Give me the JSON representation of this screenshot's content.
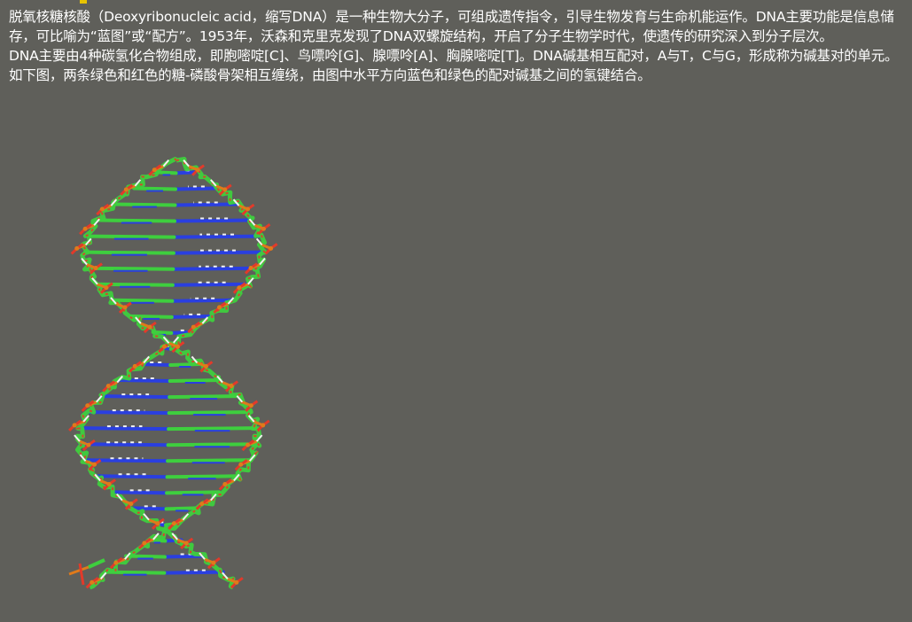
{
  "paragraphs": [
    "脱氧核糖核酸（Deoxyribonucleic acid，缩写DNA）是一种生物大分子，可组成遗传指令，引导生物发育与生命机能运作。DNA主要功能是信息储存，可比喻为“蓝图”或“配方”。1953年，沃森和克里克发现了DNA双螺旋结构，开启了分子生物学时代，使遗传的研究深入到分子层次。",
    "DNA主要由4种碳氢化合物组成，即胞嘧啶[C]、鸟嘌呤[G]、腺嘌呤[A]、胸腺嘧啶[T]。DNA碱基相互配对，A与T，C与G，形成称为碱基对的单元。如下图，两条绿色和红色的糖-磷酸骨架相互缠绕，由图中水平方向蓝色和绿色的配对碱基之间的氢键结合。"
  ],
  "figure": {
    "icon": "dna-double-helix-molecular-model",
    "colors": {
      "background": "#5f5f5a",
      "backbone": "#3ecf3e",
      "oxygen": "#e23a2a",
      "phosphorus": "#e07a1a",
      "nitrogen": "#2a3fe0",
      "hydrogen": "#f2f2f2"
    }
  }
}
